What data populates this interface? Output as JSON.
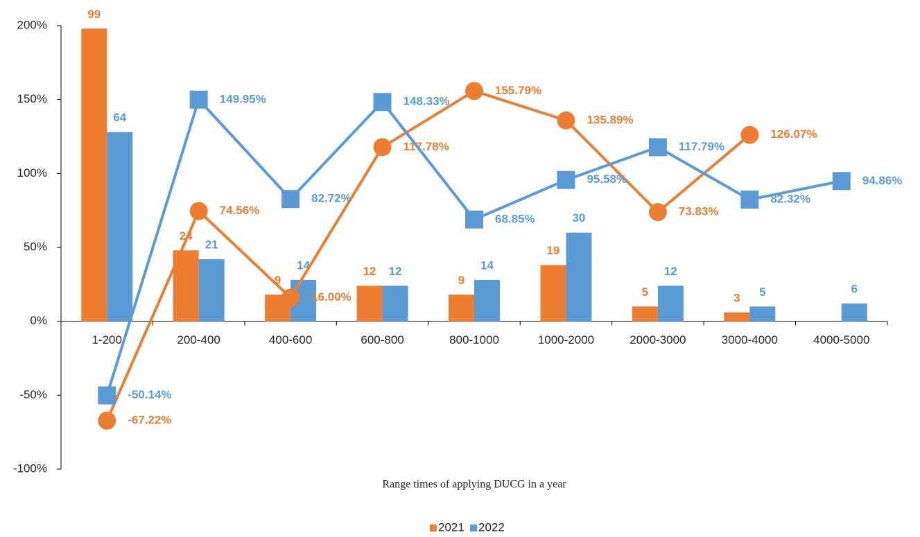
{
  "chart_data": {
    "type": "bar-line",
    "x_label": "Range times of applying DUCG in a year",
    "categories": [
      "1-200",
      "200-400",
      "400-600",
      "600-800",
      "800-1000",
      "1000-2000",
      "2000-3000",
      "3000-4000",
      "4000-5000"
    ],
    "ylim": [
      -100,
      200
    ],
    "yticks": [
      {
        "value": -100,
        "label": "-100%"
      },
      {
        "value": -50,
        "label": "-50%"
      },
      {
        "value": 0,
        "label": "0%"
      },
      {
        "value": 50,
        "label": "50%"
      },
      {
        "value": 100,
        "label": "100%"
      },
      {
        "value": 150,
        "label": "150%"
      },
      {
        "value": 200,
        "label": "200%"
      }
    ],
    "y2lim": [
      -50,
      100
    ],
    "legend": "bottom",
    "series": [
      {
        "name": "2021",
        "color": "#ed7d31",
        "values": [
          99,
          24,
          9,
          12,
          9,
          19,
          5,
          3,
          null
        ],
        "rates": [
          -67.22,
          74.56,
          16.0,
          117.78,
          155.79,
          135.89,
          73.83,
          126.07,
          null
        ],
        "rate_labels": [
          "-67.22%",
          "74.56%",
          "16.00%",
          "117.78%",
          "155.79%",
          "135.89%",
          "73.83%",
          "126.07%",
          null
        ],
        "marker": "circle"
      },
      {
        "name": "2022",
        "color": "#5b9bd5",
        "values": [
          64,
          21,
          14,
          12,
          14,
          30,
          12,
          5,
          6
        ],
        "rates": [
          -50.14,
          149.95,
          82.72,
          148.33,
          68.85,
          95.58,
          117.79,
          82.32,
          94.86
        ],
        "rate_labels": [
          "-50.14%",
          "149.95%",
          "82.72%",
          "148.33%",
          "68.85%",
          "95.58%",
          "117.79%",
          "82.32%",
          "94.86%"
        ],
        "marker": "square"
      }
    ]
  }
}
